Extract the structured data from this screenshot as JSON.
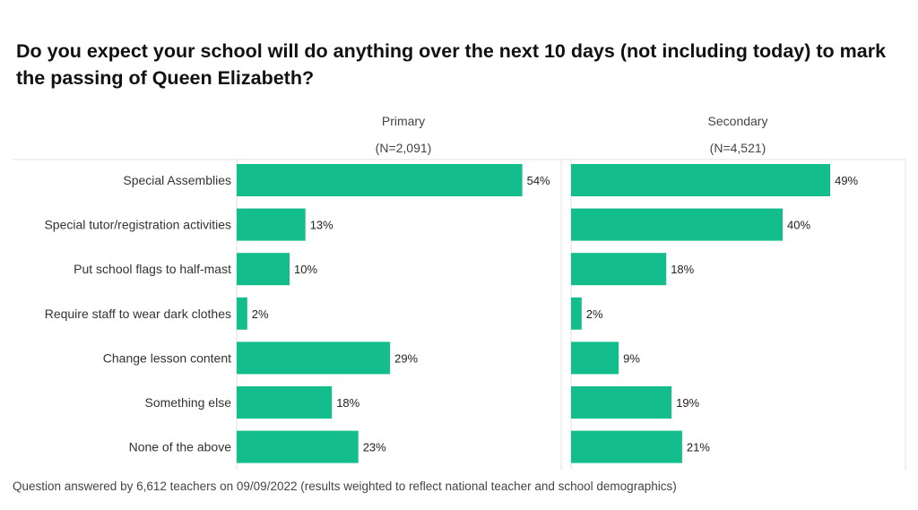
{
  "chart_data": {
    "type": "bar",
    "orientation": "horizontal",
    "title": "Do you expect your school will do anything over the next 10 days (not including today) to mark the passing of Queen Elizabeth?",
    "categories": [
      "Special Assemblies",
      "Special tutor/registration activities",
      "Put school flags to half-mast",
      "Require staff to wear dark clothes",
      "Change lesson content",
      "Something else",
      "None of the above"
    ],
    "series": [
      {
        "name": "Primary",
        "n_label": "(N=2,091)",
        "values": [
          54,
          13,
          10,
          2,
          29,
          18,
          23
        ],
        "labels": [
          "54%",
          "13%",
          "10%",
          "2%",
          "29%",
          "18%",
          "23%"
        ]
      },
      {
        "name": "Secondary",
        "n_label": "(N=4,521)",
        "values": [
          49,
          40,
          18,
          2,
          9,
          19,
          21
        ],
        "labels": [
          "49%",
          "40%",
          "18%",
          "2%",
          "9%",
          "19%",
          "21%"
        ]
      }
    ],
    "bar_color": "#14BE8C",
    "grid_color": "#E3E3E3",
    "grid": false,
    "legend": "none"
  },
  "footer": "Question answered by 6,612 teachers on 09/09/2022 (results weighted to reflect national teacher and school demographics)"
}
